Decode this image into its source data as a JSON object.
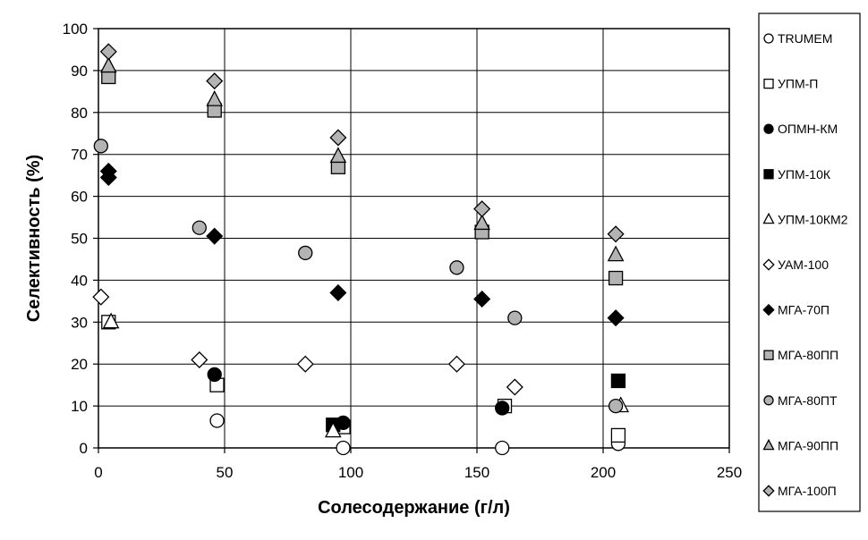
{
  "chart_data": {
    "type": "scatter",
    "title": "",
    "xlabel": "Солесодержание (г/л)",
    "ylabel": "Селективность (%)",
    "xlim": [
      0,
      250
    ],
    "ylim": [
      0,
      100
    ],
    "xticks": [
      0,
      50,
      100,
      150,
      200,
      250
    ],
    "yticks": [
      0,
      10,
      20,
      30,
      40,
      50,
      60,
      70,
      80,
      90,
      100
    ],
    "grid": true,
    "legend_position": "right",
    "series": [
      {
        "name": "TRUMEM",
        "marker": "circle-open",
        "color": "#ffffff",
        "points": [
          [
            47,
            6.5
          ],
          [
            97,
            0
          ],
          [
            160,
            0
          ],
          [
            206,
            1
          ]
        ]
      },
      {
        "name": "УПМ-П",
        "marker": "square-open",
        "color": "#ffffff",
        "points": [
          [
            4,
            30
          ],
          [
            47,
            15
          ],
          [
            97,
            5
          ],
          [
            161,
            10
          ],
          [
            206,
            3
          ]
        ]
      },
      {
        "name": "ОПМН-КМ",
        "marker": "circle-filled",
        "color": "#000000",
        "points": [
          [
            46,
            17.5
          ],
          [
            97,
            6
          ],
          [
            160,
            9.5
          ]
        ]
      },
      {
        "name": "УПМ-10К",
        "marker": "square-filled",
        "color": "#000000",
        "points": [
          [
            93,
            5.5
          ],
          [
            206,
            16
          ]
        ]
      },
      {
        "name": "УПМ-10КМ2",
        "marker": "triangle-open",
        "color": "#ffffff",
        "points": [
          [
            5,
            30
          ],
          [
            93,
            4
          ],
          [
            207,
            10
          ]
        ]
      },
      {
        "name": "УАМ-100",
        "marker": "diamond-open",
        "color": "#ffffff",
        "points": [
          [
            1,
            36
          ],
          [
            40,
            21
          ],
          [
            82,
            20
          ],
          [
            142,
            20
          ],
          [
            165,
            14.5
          ]
        ]
      },
      {
        "name": "МГА-70П",
        "marker": "diamond-filled",
        "color": "#000000",
        "points": [
          [
            4,
            64.5
          ],
          [
            4,
            66
          ],
          [
            46,
            50.5
          ],
          [
            95,
            37
          ],
          [
            152,
            35.5
          ],
          [
            205,
            31
          ]
        ]
      },
      {
        "name": "МГА-80ПП",
        "marker": "square-gray",
        "color": "#b3b3b3",
        "points": [
          [
            4,
            88.5
          ],
          [
            46,
            80.5
          ],
          [
            95,
            67
          ],
          [
            152,
            51.5
          ],
          [
            205,
            40.5
          ]
        ]
      },
      {
        "name": "МГА-80ПТ",
        "marker": "circle-gray",
        "color": "#b3b3b3",
        "points": [
          [
            1,
            72
          ],
          [
            40,
            52.5
          ],
          [
            82,
            46.5
          ],
          [
            142,
            43
          ],
          [
            165,
            31
          ],
          [
            205,
            10
          ]
        ]
      },
      {
        "name": "МГА-90ПП",
        "marker": "triangle-gray",
        "color": "#b3b3b3",
        "points": [
          [
            4,
            91
          ],
          [
            46,
            83
          ],
          [
            95,
            69.5
          ],
          [
            152,
            53.5
          ],
          [
            205,
            46
          ]
        ]
      },
      {
        "name": "МГА-100П",
        "marker": "diamond-gray",
        "color": "#b3b3b3",
        "points": [
          [
            4,
            94.5
          ],
          [
            46,
            87.5
          ],
          [
            95,
            74
          ],
          [
            152,
            57
          ],
          [
            205,
            51
          ]
        ]
      }
    ]
  }
}
